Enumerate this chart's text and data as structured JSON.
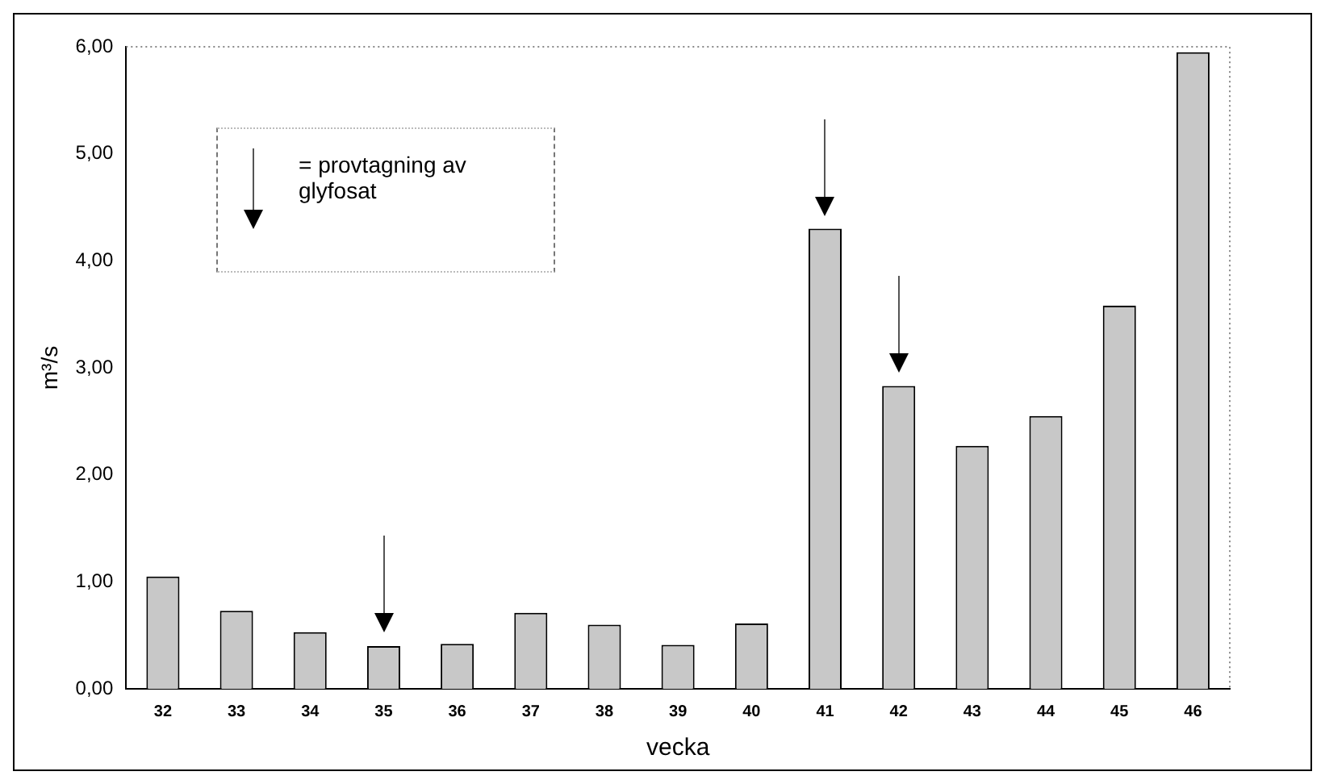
{
  "chart_data": {
    "type": "bar",
    "xlabel": "vecka",
    "ylabel": "m³/s",
    "categories": [
      "32",
      "33",
      "34",
      "35",
      "36",
      "37",
      "38",
      "39",
      "40",
      "41",
      "42",
      "43",
      "44",
      "45",
      "46"
    ],
    "values": [
      1.05,
      0.73,
      0.53,
      0.4,
      0.42,
      0.71,
      0.6,
      0.41,
      0.61,
      4.3,
      2.83,
      2.27,
      2.55,
      3.58,
      5.95
    ],
    "color": "#c8c8c8",
    "ylim": [
      0,
      6
    ],
    "yticks": [
      {
        "value": 0,
        "label": "0,00"
      },
      {
        "value": 1,
        "label": "1,00"
      },
      {
        "value": 2,
        "label": "2,00"
      },
      {
        "value": 3,
        "label": "3,00"
      },
      {
        "value": 4,
        "label": "4,00"
      },
      {
        "value": 5,
        "label": "5,00"
      },
      {
        "value": 6,
        "label": "6,00"
      }
    ],
    "grid": false,
    "legend": false,
    "annotations": [
      "= provtagning av glyfosat"
    ]
  }
}
